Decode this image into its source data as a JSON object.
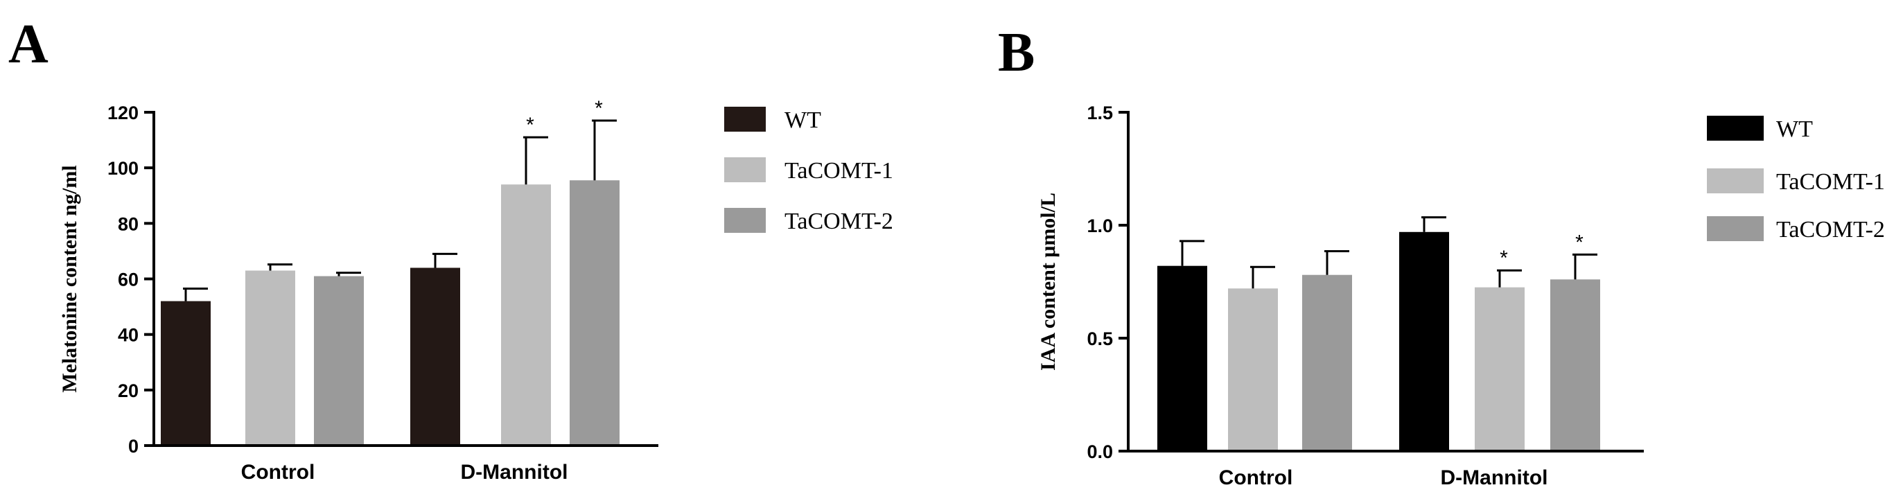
{
  "panels": [
    {
      "label": "A"
    },
    {
      "label": "B"
    }
  ],
  "colors": {
    "WT_A": "#231815",
    "WT_B": "#000000",
    "TaCOMT-1": "#bdbdbd",
    "TaCOMT-2": "#9a9a9a"
  },
  "chart_data": [
    {
      "type": "bar",
      "panel": "A",
      "categories": [
        "Control",
        "D-Mannitol"
      ],
      "ylabel": "Melatonine content ng/ml",
      "ylim": [
        0,
        120
      ],
      "yticks": [
        "0",
        "20",
        "40",
        "60",
        "80",
        "100",
        "120"
      ],
      "ytick_values": [
        0,
        20,
        40,
        60,
        80,
        100,
        120
      ],
      "series": [
        {
          "name": "WT",
          "values": [
            52,
            64
          ],
          "errors": [
            4.5,
            5
          ],
          "sig": [
            "",
            ""
          ]
        },
        {
          "name": "TaCOMT-1",
          "values": [
            63,
            94
          ],
          "errors": [
            2.2,
            17
          ],
          "sig": [
            "",
            "*"
          ]
        },
        {
          "name": "TaCOMT-2",
          "values": [
            61,
            95.5
          ],
          "errors": [
            1.2,
            21.5
          ],
          "sig": [
            "",
            "*"
          ]
        }
      ],
      "legend": "right"
    },
    {
      "type": "bar",
      "panel": "B",
      "categories": [
        "Control",
        "D-Mannitol"
      ],
      "ylabel": "IAA content μmol/L",
      "ylim": [
        0,
        1.5
      ],
      "yticks": [
        "0.0",
        "0.5",
        "1.0",
        "1.5"
      ],
      "ytick_values": [
        0,
        0.5,
        1.0,
        1.5
      ],
      "series": [
        {
          "name": "WT",
          "values": [
            0.82,
            0.97
          ],
          "errors": [
            0.11,
            0.065
          ],
          "sig": [
            "",
            ""
          ]
        },
        {
          "name": "TaCOMT-1",
          "values": [
            0.72,
            0.725
          ],
          "errors": [
            0.095,
            0.075
          ],
          "sig": [
            "",
            "*"
          ]
        },
        {
          "name": "TaCOMT-2",
          "values": [
            0.78,
            0.76
          ],
          "errors": [
            0.105,
            0.11
          ],
          "sig": [
            "",
            "*"
          ]
        }
      ],
      "legend": "right"
    }
  ]
}
